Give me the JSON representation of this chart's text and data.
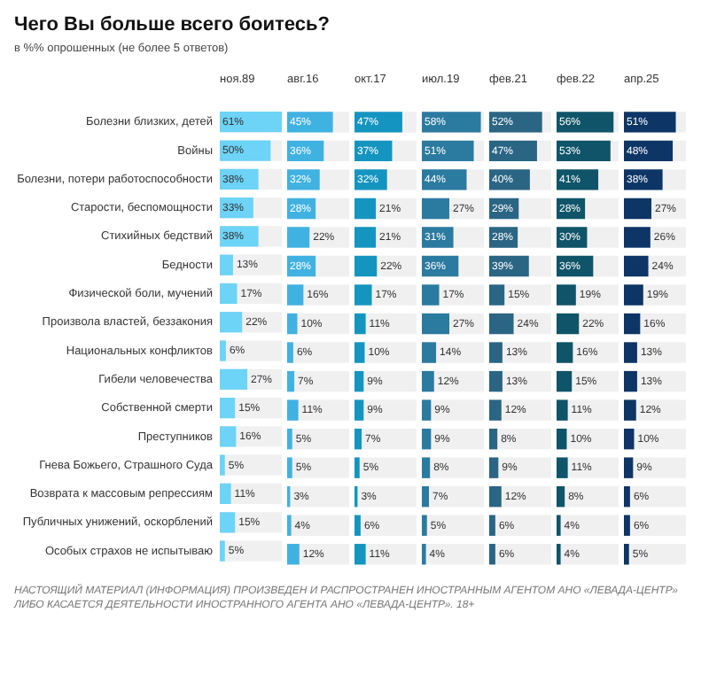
{
  "chart_data": [
    {
      "type": "bar",
      "orientation": "horizontal",
      "title": "Чего Вы больше всего боитесь?",
      "subtitle": "в %% опрошенных (не более 5 ответов)",
      "xlim": [
        0,
        61
      ],
      "legend": false,
      "tick_labels": "y",
      "categories": [
        "Болезни близких, детей",
        "Войны",
        "Болезни, потери работоспособности",
        "Старости, беспомощности",
        "Стихийных бедствий",
        "Бедности",
        "Физической боли, мучений",
        "Произвола властей, беззакония",
        "Национальных конфликтов",
        "Гибели человечества",
        "Собственной смерти",
        "Преступников",
        "Гнева Божьего, Страшного Суда",
        "Возврата к массовым репрессиям",
        "Публичных унижений, оскорблений",
        "Особых страхов не испытываю"
      ],
      "series": [
        {
          "name": "ноя.89",
          "color": "#6dd3f7",
          "values": [
            61,
            50,
            38,
            33,
            38,
            13,
            17,
            22,
            6,
            27,
            15,
            16,
            5,
            11,
            15,
            5
          ],
          "value_labels": [
            "61%",
            "50%",
            "38%",
            "33%",
            "38%",
            "13%",
            "17%",
            "22%",
            "6%",
            "27%",
            "15%",
            "16%",
            "5%",
            "11%",
            "15%",
            "5%"
          ]
        }
      ],
      "annotations": [
        "НАСТОЯЩИЙ МАТЕРИАЛ (ИНФОРМАЦИЯ) ПРОИЗВЕДЕН И РАСПРОСТРАНЕН ИНОСТРАННЫМ АГЕНТОМ АНО «ЛЕВАДА-ЦЕНТР» ЛИБО КАСАЕТСЯ ДЕЯТЕЛЬНОСТИ ИНОСТРАННОГО АГЕНТА АНО «ЛЕВАДА-ЦЕНТР». 18+"
      ]
    },
    {
      "type": "bar",
      "orientation": "horizontal",
      "xlim": [
        0,
        61
      ],
      "legend": false,
      "tick_labels": false,
      "categories": [
        null,
        null,
        null,
        null,
        null,
        null,
        null,
        null,
        null,
        null,
        null,
        null,
        null,
        null,
        null,
        null
      ],
      "series": [
        {
          "name": "авг.16",
          "color": "#40b2e2",
          "values": [
            45,
            36,
            32,
            28,
            22,
            28,
            16,
            10,
            6,
            7,
            11,
            5,
            5,
            3,
            4,
            12
          ],
          "value_labels": [
            "45%",
            "36%",
            "32%",
            "28%",
            "22%",
            "28%",
            "16%",
            "10%",
            "6%",
            "7%",
            "11%",
            "5%",
            "5%",
            "3%",
            "4%",
            "12%"
          ]
        }
      ]
    },
    {
      "type": "bar",
      "orientation": "horizontal",
      "xlim": [
        0,
        61
      ],
      "legend": false,
      "tick_labels": false,
      "categories": [
        null,
        null,
        null,
        null,
        null,
        null,
        null,
        null,
        null,
        null,
        null,
        null,
        null,
        null,
        null,
        null
      ],
      "series": [
        {
          "name": "окт.17",
          "color": "#1495c0",
          "values": [
            47,
            37,
            32,
            21,
            21,
            22,
            17,
            11,
            10,
            9,
            9,
            7,
            5,
            3,
            6,
            11
          ],
          "value_labels": [
            "47%",
            "37%",
            "32%",
            "21%",
            "21%",
            "22%",
            "17%",
            "11%",
            "10%",
            "9%",
            "9%",
            "7%",
            "5%",
            "3%",
            "6%",
            "11%"
          ]
        }
      ]
    },
    {
      "type": "bar",
      "orientation": "horizontal",
      "xlim": [
        0,
        61
      ],
      "legend": false,
      "tick_labels": false,
      "categories": [
        null,
        null,
        null,
        null,
        null,
        null,
        null,
        null,
        null,
        null,
        null,
        null,
        null,
        null,
        null,
        null
      ],
      "series": [
        {
          "name": "июл.19",
          "color": "#2b7aa0",
          "values": [
            58,
            51,
            44,
            27,
            31,
            36,
            17,
            27,
            14,
            12,
            9,
            9,
            8,
            7,
            5,
            4
          ],
          "value_labels": [
            "58%",
            "51%",
            "44%",
            "27%",
            "31%",
            "36%",
            "17%",
            "27%",
            "14%",
            "12%",
            "9%",
            "9%",
            "8%",
            "7%",
            "5%",
            "4%"
          ]
        }
      ]
    },
    {
      "type": "bar",
      "orientation": "horizontal",
      "xlim": [
        0,
        61
      ],
      "legend": false,
      "tick_labels": false,
      "categories": [
        null,
        null,
        null,
        null,
        null,
        null,
        null,
        null,
        null,
        null,
        null,
        null,
        null,
        null,
        null,
        null
      ],
      "series": [
        {
          "name": "фев.21",
          "color": "#2a6584",
          "values": [
            52,
            47,
            40,
            29,
            28,
            39,
            15,
            24,
            13,
            13,
            12,
            8,
            9,
            12,
            6,
            6
          ],
          "value_labels": [
            "52%",
            "47%",
            "40%",
            "29%",
            "28%",
            "39%",
            "15%",
            "24%",
            "13%",
            "13%",
            "12%",
            "8%",
            "9%",
            "12%",
            "6%",
            "6%"
          ]
        }
      ]
    },
    {
      "type": "bar",
      "orientation": "horizontal",
      "xlim": [
        0,
        61
      ],
      "legend": false,
      "tick_labels": false,
      "categories": [
        null,
        null,
        null,
        null,
        null,
        null,
        null,
        null,
        null,
        null,
        null,
        null,
        null,
        null,
        null,
        null
      ],
      "series": [
        {
          "name": "фев.22",
          "color": "#0f5468",
          "values": [
            56,
            53,
            41,
            28,
            30,
            36,
            19,
            22,
            16,
            15,
            11,
            10,
            11,
            8,
            4,
            4
          ],
          "value_labels": [
            "56%",
            "53%",
            "41%",
            "28%",
            "30%",
            "36%",
            "19%",
            "22%",
            "16%",
            "15%",
            "11%",
            "10%",
            "11%",
            "8%",
            "4%",
            "4%"
          ]
        }
      ]
    },
    {
      "type": "bar",
      "orientation": "horizontal",
      "xlim": [
        0,
        61
      ],
      "legend": false,
      "tick_labels": false,
      "categories": [
        null,
        null,
        null,
        null,
        null,
        null,
        null,
        null,
        null,
        null,
        null,
        null,
        null,
        null,
        null,
        null
      ],
      "series": [
        {
          "name": "апр.25",
          "color": "#0d3566",
          "values": [
            51,
            48,
            38,
            27,
            26,
            24,
            19,
            16,
            13,
            13,
            12,
            10,
            9,
            6,
            6,
            5
          ],
          "value_labels": [
            "51%",
            "48%",
            "38%",
            "27%",
            "26%",
            "24%",
            "19%",
            "16%",
            "13%",
            "13%",
            "12%",
            "10%",
            "9%",
            "6%",
            "6%",
            "5%"
          ]
        }
      ]
    }
  ]
}
